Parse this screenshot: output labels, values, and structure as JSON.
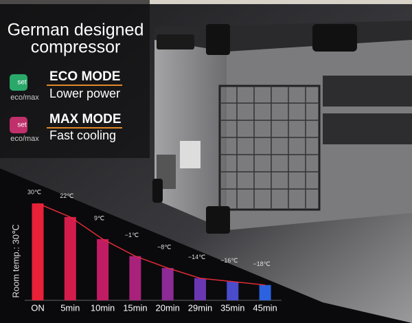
{
  "headline": [
    "German designed",
    "compressor"
  ],
  "modes": [
    {
      "icon": "set",
      "icon_caption": "eco/max",
      "title": "ECO MODE",
      "subtitle": "Lower power"
    },
    {
      "icon": "set",
      "icon_caption": "eco/max",
      "title": "MAX MODE",
      "subtitle": "Fast cooling"
    }
  ],
  "chart_data": {
    "type": "bar",
    "y_label": "Room temp.: 30℃",
    "categories": [
      "ON",
      "5min",
      "10min",
      "15min",
      "20min",
      "29min",
      "35min",
      "45min"
    ],
    "values": [
      30,
      22,
      9,
      -1,
      -8,
      -14,
      -16,
      -18
    ],
    "value_labels": [
      "30℃",
      "22℃",
      "9℃",
      "−1℃",
      "−8℃",
      "−14℃",
      "−16℃",
      "−18℃"
    ],
    "colors": [
      "#e82038",
      "#d41c4c",
      "#c01c63",
      "#a8227c",
      "#8c2a96",
      "#6a36b2",
      "#4a4ccc",
      "#2c62e0"
    ],
    "line_color": "#e02b38",
    "ylim": [
      -27,
      30
    ]
  }
}
